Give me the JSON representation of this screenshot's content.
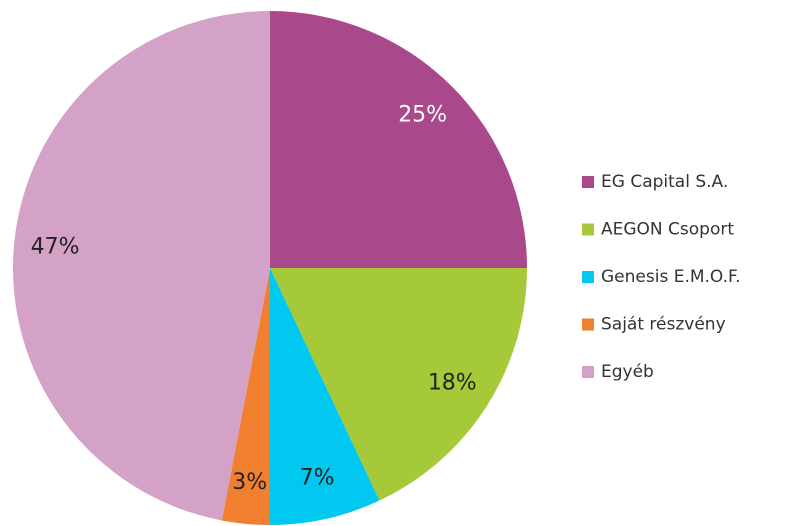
{
  "chart_data": {
    "type": "pie",
    "categories": [
      "EG Capital S.A.",
      "AEGON Csoport",
      "Genesis E.M.O.F.",
      "Saját részvény",
      "Egyéb"
    ],
    "values": [
      25,
      18,
      7,
      3,
      47
    ],
    "value_labels": [
      "25%",
      "18%",
      "7%",
      "3%",
      "47%"
    ],
    "colors": [
      "#a9488a",
      "#a6c93a",
      "#00c8f0",
      "#f08030",
      "#d4a2c6"
    ],
    "legend": "right"
  }
}
